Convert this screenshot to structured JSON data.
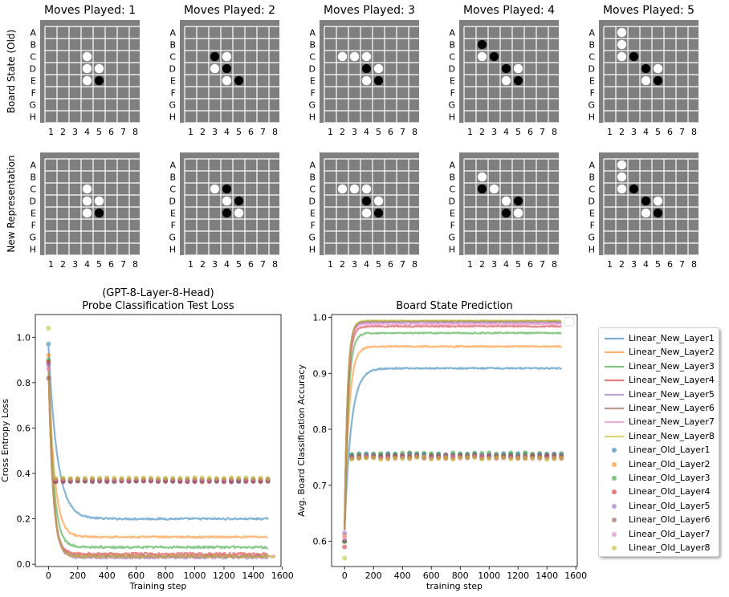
{
  "boards": {
    "columns": [
      "Moves Played: 1",
      "Moves Played: 2",
      "Moves Played: 3",
      "Moves Played: 4",
      "Moves Played: 5"
    ],
    "row_labels": [
      "Board State (Old)",
      "New Representation"
    ],
    "rank_labels": [
      "A",
      "B",
      "C",
      "D",
      "E",
      "F",
      "G",
      "H"
    ],
    "file_labels": [
      "1",
      "2",
      "3",
      "4",
      "5",
      "6",
      "7",
      "8"
    ],
    "colors": {
      "background": "#7f7f7f",
      "grid": "#ffffff",
      "white_piece": "#ffffff",
      "black_piece": "#000000"
    },
    "states": [
      [
        {
          "white": [
            "C4",
            "D4",
            "D5",
            "E4"
          ],
          "black": [
            "E5"
          ]
        },
        {
          "white": [
            "C4",
            "D4",
            "D5",
            "E4"
          ],
          "black": [
            "E5"
          ]
        }
      ],
      [
        {
          "white": [
            "C4",
            "D3",
            "E4"
          ],
          "black": [
            "C3",
            "D4",
            "E5"
          ]
        },
        {
          "white": [
            "C3",
            "D4",
            "E5"
          ],
          "black": [
            "C4",
            "D5",
            "E4"
          ]
        }
      ],
      [
        {
          "white": [
            "C2",
            "C3",
            "C4",
            "D5",
            "E4"
          ],
          "black": [
            "D4",
            "E5"
          ]
        },
        {
          "white": [
            "C2",
            "C3",
            "C4",
            "D5",
            "E4"
          ],
          "black": [
            "D4",
            "E5"
          ]
        }
      ],
      [
        {
          "white": [
            "C2",
            "D5",
            "E4"
          ],
          "black": [
            "B2",
            "C3",
            "D4",
            "E5"
          ]
        },
        {
          "white": [
            "B2",
            "C3",
            "D4",
            "E5"
          ],
          "black": [
            "C2",
            "D5",
            "E4"
          ]
        }
      ],
      [
        {
          "white": [
            "A2",
            "B2",
            "C2",
            "D5",
            "E4"
          ],
          "black": [
            "C3",
            "D4",
            "E5"
          ]
        },
        {
          "white": [
            "A2",
            "B2",
            "C2",
            "D5",
            "E4"
          ],
          "black": [
            "C3",
            "D4",
            "E5"
          ]
        }
      ]
    ]
  },
  "chart_data": [
    {
      "type": "line",
      "title": "(GPT-8-Layer-8-Head)\nProbe Classification Test Loss",
      "xlabel": "Training step",
      "ylabel": "Cross Entropy Loss",
      "xlim": [
        -90,
        1590
      ],
      "ylim": [
        -0.01,
        1.1
      ],
      "xticks": [
        0,
        200,
        400,
        600,
        800,
        1000,
        1200,
        1400,
        1600
      ],
      "yticks": [
        0.0,
        0.2,
        0.4,
        0.6,
        0.8,
        1.0
      ],
      "x_start": [
        0,
        10
      ],
      "series": [
        {
          "name": "Linear_New_Layer1",
          "kind": "line",
          "color": "#1f77b4",
          "start": 0.96,
          "plateau": 0.2,
          "knee": 60,
          "end_x": 1500,
          "noise": 0.004
        },
        {
          "name": "Linear_New_Layer2",
          "kind": "line",
          "color": "#ff7f0e",
          "start": 0.9,
          "plateau": 0.12,
          "knee": 40,
          "end_x": 1500,
          "noise": 0.004
        },
        {
          "name": "Linear_New_Layer3",
          "kind": "line",
          "color": "#2ca02c",
          "start": 0.88,
          "plateau": 0.075,
          "knee": 35,
          "end_x": 1500,
          "noise": 0.005
        },
        {
          "name": "Linear_New_Layer4",
          "kind": "line",
          "color": "#d62728",
          "start": 0.88,
          "plateau": 0.045,
          "knee": 30,
          "end_x": 1500,
          "noise": 0.006
        },
        {
          "name": "Linear_New_Layer5",
          "kind": "line",
          "color": "#9467bd",
          "start": 0.88,
          "plateau": 0.03,
          "knee": 30,
          "end_x": 1500,
          "noise": 0.006
        },
        {
          "name": "Linear_New_Layer6",
          "kind": "line",
          "color": "#8c564b",
          "start": 0.88,
          "plateau": 0.035,
          "knee": 30,
          "end_x": 1500,
          "noise": 0.006
        },
        {
          "name": "Linear_New_Layer7",
          "kind": "line",
          "color": "#e377c2",
          "start": 0.88,
          "plateau": 0.035,
          "knee": 30,
          "end_x": 1550,
          "noise": 0.006
        },
        {
          "name": "Linear_New_Layer8",
          "kind": "line",
          "color": "#bcbd22",
          "start": 0.88,
          "plateau": 0.035,
          "knee": 30,
          "end_x": 1550,
          "noise": 0.006
        },
        {
          "name": "Linear_Old_Layer1",
          "kind": "points",
          "color": "#1f77b4",
          "start": 0.97,
          "plateau": 0.365
        },
        {
          "name": "Linear_Old_Layer2",
          "kind": "points",
          "color": "#ff7f0e",
          "start": 0.92,
          "plateau": 0.37
        },
        {
          "name": "Linear_Old_Layer3",
          "kind": "points",
          "color": "#2ca02c",
          "start": 0.9,
          "plateau": 0.37
        },
        {
          "name": "Linear_Old_Layer4",
          "kind": "points",
          "color": "#d62728",
          "start": 0.89,
          "plateau": 0.365
        },
        {
          "name": "Linear_Old_Layer5",
          "kind": "points",
          "color": "#9467bd",
          "start": 0.88,
          "plateau": 0.37
        },
        {
          "name": "Linear_Old_Layer6",
          "kind": "points",
          "color": "#8c564b",
          "start": 0.82,
          "plateau": 0.37
        },
        {
          "name": "Linear_Old_Layer7",
          "kind": "points",
          "color": "#e377c2",
          "start": 0.86,
          "plateau": 0.375
        },
        {
          "name": "Linear_Old_Layer8",
          "kind": "points",
          "color": "#bcbd22",
          "start": 1.04,
          "plateau": 0.38
        }
      ],
      "points_x": [
        0,
        50,
        100,
        150,
        200,
        250,
        300,
        350,
        400,
        450,
        500,
        550,
        600,
        650,
        700,
        750,
        800,
        850,
        900,
        950,
        1000,
        1050,
        1100,
        1150,
        1200,
        1250,
        1300,
        1350,
        1400,
        1450,
        1500
      ]
    },
    {
      "type": "line",
      "title": "Board State Prediction",
      "xlabel": "training step",
      "ylabel": "Avg. Board Classification Accuracy",
      "xlim": [
        -90,
        1610
      ],
      "ylim": [
        0.555,
        1.005
      ],
      "xticks": [
        0,
        200,
        400,
        600,
        800,
        1000,
        1200,
        1400,
        1600
      ],
      "yticks": [
        0.6,
        0.7,
        0.8,
        0.9,
        1.0
      ],
      "series": [
        {
          "name": "Linear_New_Layer1",
          "kind": "line",
          "color": "#1f77b4",
          "start": 0.62,
          "plateau": 0.909,
          "knee": 45,
          "end_x": 1500,
          "noise": 0.0012
        },
        {
          "name": "Linear_New_Layer2",
          "kind": "line",
          "color": "#ff7f0e",
          "start": 0.62,
          "plateau": 0.948,
          "knee": 30,
          "end_x": 1500,
          "noise": 0.0012
        },
        {
          "name": "Linear_New_Layer3",
          "kind": "line",
          "color": "#2ca02c",
          "start": 0.62,
          "plateau": 0.972,
          "knee": 25,
          "end_x": 1500,
          "noise": 0.0012
        },
        {
          "name": "Linear_New_Layer4",
          "kind": "line",
          "color": "#d62728",
          "start": 0.62,
          "plateau": 0.984,
          "knee": 22,
          "end_x": 1500,
          "noise": 0.0012
        },
        {
          "name": "Linear_New_Layer5",
          "kind": "line",
          "color": "#9467bd",
          "start": 0.62,
          "plateau": 0.991,
          "knee": 20,
          "end_x": 1500,
          "noise": 0.001
        },
        {
          "name": "Linear_New_Layer6",
          "kind": "line",
          "color": "#8c564b",
          "start": 0.62,
          "plateau": 0.993,
          "knee": 20,
          "end_x": 1500,
          "noise": 0.001
        },
        {
          "name": "Linear_New_Layer7",
          "kind": "line",
          "color": "#e377c2",
          "start": 0.62,
          "plateau": 0.988,
          "knee": 20,
          "end_x": 1500,
          "noise": 0.001
        },
        {
          "name": "Linear_New_Layer8",
          "kind": "line",
          "color": "#bcbd22",
          "start": 0.62,
          "plateau": 0.994,
          "knee": 20,
          "end_x": 1500,
          "noise": 0.001
        },
        {
          "name": "Linear_Old_Layer1",
          "kind": "points",
          "color": "#1f77b4",
          "start": 0.6,
          "plateau": 0.755
        },
        {
          "name": "Linear_Old_Layer2",
          "kind": "points",
          "color": "#ff7f0e",
          "start": 0.61,
          "plateau": 0.752
        },
        {
          "name": "Linear_Old_Layer3",
          "kind": "points",
          "color": "#2ca02c",
          "start": 0.6,
          "plateau": 0.756
        },
        {
          "name": "Linear_Old_Layer4",
          "kind": "points",
          "color": "#d62728",
          "start": 0.59,
          "plateau": 0.75
        },
        {
          "name": "Linear_Old_Layer5",
          "kind": "points",
          "color": "#9467bd",
          "start": 0.615,
          "plateau": 0.753
        },
        {
          "name": "Linear_Old_Layer6",
          "kind": "points",
          "color": "#8c564b",
          "start": 0.6,
          "plateau": 0.751
        },
        {
          "name": "Linear_Old_Layer7",
          "kind": "points",
          "color": "#e377c2",
          "start": 0.605,
          "plateau": 0.749
        },
        {
          "name": "Linear_Old_Layer8",
          "kind": "points",
          "color": "#bcbd22",
          "start": 0.57,
          "plateau": 0.748
        }
      ],
      "points_x": [
        0,
        50,
        100,
        150,
        200,
        250,
        300,
        350,
        400,
        450,
        500,
        550,
        600,
        650,
        700,
        750,
        800,
        850,
        900,
        950,
        1000,
        1050,
        1100,
        1150,
        1200,
        1250,
        1300,
        1350,
        1400,
        1450,
        1500
      ]
    }
  ]
}
